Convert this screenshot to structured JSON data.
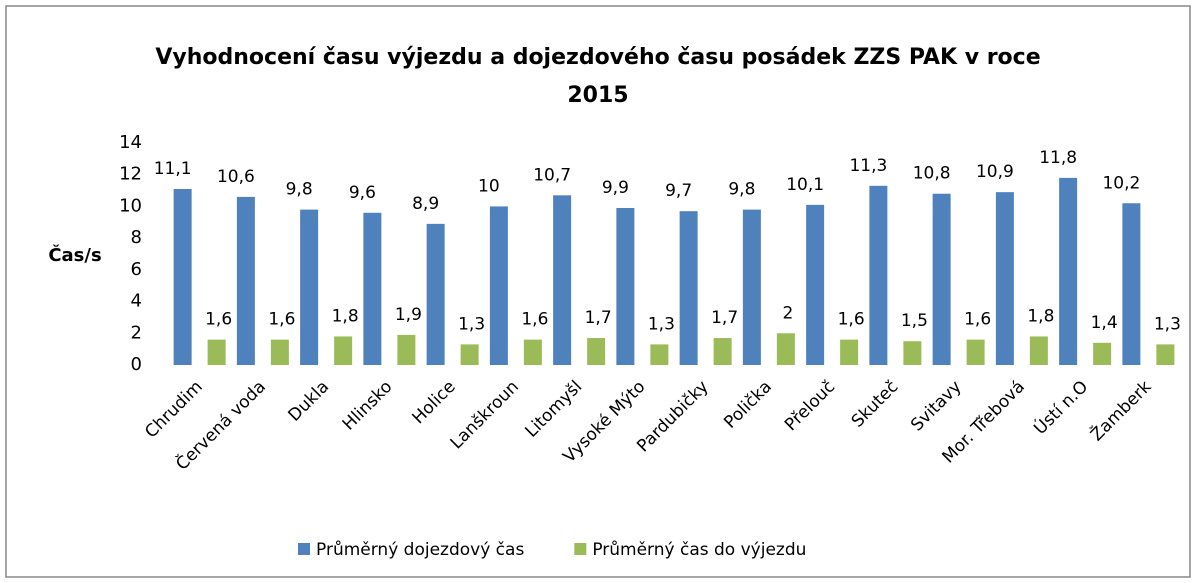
{
  "chart_data": {
    "type": "bar",
    "title": [
      "Vyhodnocení času výjezdu a dojezdového času posádek ZZS PAK v roce",
      "2015"
    ],
    "y_label": "Čas/s",
    "categories": [
      "Chrudim",
      "Červená voda",
      "Dukla",
      "Hlinsko",
      "Holice",
      "Lanškroun",
      "Litomyšl",
      "Vysoké Mýto",
      "Pardubičky",
      "Polička",
      "Přelouč",
      "Skuteč",
      "Svitavy",
      "Mor. Třebová",
      "Ústí n.O",
      "Žamberk"
    ],
    "series": [
      {
        "name": "Průměrný dojezdový čas",
        "color": "#4f81bd",
        "values": [
          11.1,
          10.6,
          9.8,
          9.6,
          8.9,
          10,
          10.7,
          9.9,
          9.7,
          9.8,
          10.1,
          11.3,
          10.8,
          10.9,
          11.8,
          10.2
        ],
        "value_labels": [
          "11,1",
          "10,6",
          "9,8",
          "9,6",
          "8,9",
          "10",
          "10,7",
          "9,9",
          "9,7",
          "9,8",
          "10,1",
          "11,3",
          "10,8",
          "10,9",
          "11,8",
          "10,2"
        ]
      },
      {
        "name": "Průměrný čas do výjezdu",
        "color": "#9bbb59",
        "values": [
          1.6,
          1.6,
          1.8,
          1.9,
          1.3,
          1.6,
          1.7,
          1.3,
          1.7,
          2,
          1.6,
          1.5,
          1.6,
          1.8,
          1.4,
          1.3
        ],
        "value_labels": [
          "1,6",
          "1,6",
          "1,8",
          "1,9",
          "1,3",
          "1,6",
          "1,7",
          "1,3",
          "1,7",
          "2",
          "1,6",
          "1,5",
          "1,6",
          "1,8",
          "1,4",
          "1,3"
        ]
      }
    ],
    "ylim": [
      0,
      14
    ],
    "yticks": [
      0,
      2,
      4,
      6,
      8,
      10,
      12,
      14
    ],
    "grid": false,
    "legend": "bottom"
  }
}
